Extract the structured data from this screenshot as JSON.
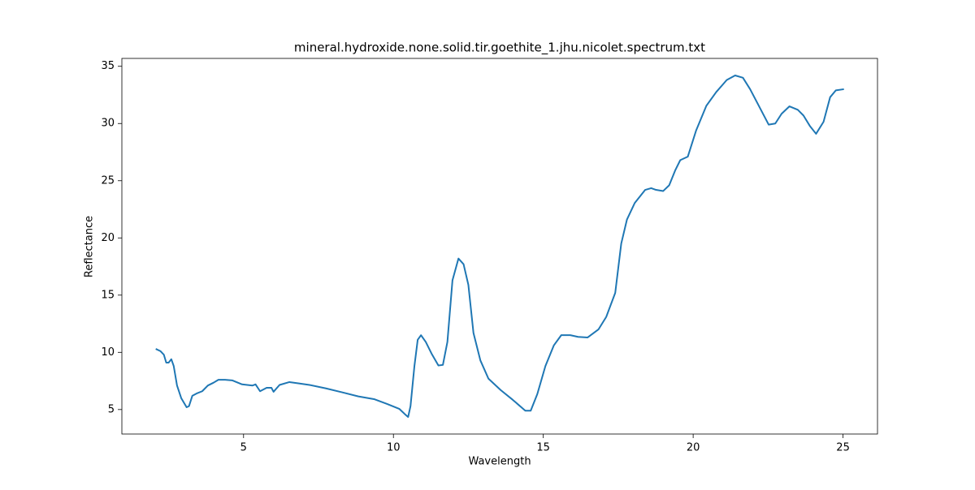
{
  "chart_data": {
    "type": "line",
    "title": "mineral.hydroxide.none.solid.tir.goethite_1.jhu.nicolet.spectrum.txt",
    "x_label": "Wavelength",
    "y_label": "Reflectance",
    "x": [
      2.07,
      2.23,
      2.34,
      2.42,
      2.5,
      2.59,
      2.67,
      2.78,
      2.92,
      3.1,
      3.18,
      3.29,
      3.43,
      3.62,
      3.81,
      4.0,
      4.16,
      4.38,
      4.62,
      4.95,
      5.3,
      5.4,
      5.55,
      5.77,
      5.93,
      6.0,
      6.2,
      6.53,
      6.8,
      7.2,
      7.75,
      8.3,
      8.83,
      9.37,
      9.78,
      10.2,
      10.38,
      10.49,
      10.57,
      10.7,
      10.81,
      10.92,
      11.08,
      11.27,
      11.5,
      11.65,
      11.8,
      11.97,
      12.17,
      12.34,
      12.5,
      12.67,
      12.9,
      13.17,
      13.58,
      13.98,
      14.4,
      14.58,
      14.8,
      15.07,
      15.35,
      15.6,
      15.9,
      16.16,
      16.48,
      16.84,
      17.1,
      17.4,
      17.6,
      17.79,
      18.05,
      18.4,
      18.6,
      18.76,
      19.0,
      19.2,
      19.4,
      19.57,
      19.82,
      20.1,
      20.44,
      20.77,
      21.12,
      21.4,
      21.66,
      21.9,
      22.18,
      22.52,
      22.74,
      22.95,
      23.21,
      23.49,
      23.68,
      23.89,
      24.1,
      24.35,
      24.57,
      24.76,
      25.03
    ],
    "values": [
      10.3,
      10.1,
      9.8,
      9.1,
      9.1,
      9.4,
      8.8,
      7.1,
      6.0,
      5.2,
      5.3,
      6.2,
      6.4,
      6.6,
      7.1,
      7.35,
      7.6,
      7.6,
      7.55,
      7.2,
      7.1,
      7.2,
      6.6,
      6.9,
      6.9,
      6.55,
      7.15,
      7.4,
      7.3,
      7.15,
      6.85,
      6.5,
      6.15,
      5.9,
      5.5,
      5.05,
      4.6,
      4.35,
      5.3,
      8.8,
      11.1,
      11.5,
      10.9,
      9.9,
      8.85,
      8.9,
      10.9,
      16.3,
      18.2,
      17.7,
      15.9,
      11.7,
      9.3,
      7.7,
      6.7,
      5.85,
      4.9,
      4.9,
      6.35,
      8.8,
      10.6,
      11.5,
      11.5,
      11.35,
      11.3,
      12.0,
      13.1,
      15.2,
      19.5,
      21.6,
      23.05,
      24.2,
      24.35,
      24.2,
      24.1,
      24.6,
      25.9,
      26.8,
      27.1,
      29.4,
      31.55,
      32.75,
      33.8,
      34.2,
      34.0,
      33.0,
      31.6,
      29.9,
      30.0,
      30.85,
      31.5,
      31.2,
      30.7,
      29.8,
      29.1,
      30.15,
      32.3,
      32.9,
      33.0
    ],
    "color": "#1f77b4",
    "xlim": [
      0.94,
      26.15
    ],
    "ylim": [
      2.86,
      35.69
    ],
    "xticks": [
      5,
      10,
      15,
      20,
      25
    ],
    "yticks": [
      5,
      10,
      15,
      20,
      25,
      30,
      35
    ],
    "grid": false
  }
}
